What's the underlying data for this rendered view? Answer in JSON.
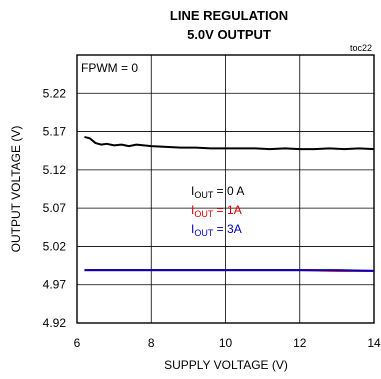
{
  "chart_data": {
    "type": "line",
    "title": "LINE REGULATION",
    "subtitle": "5.0V OUTPUT",
    "xlabel": "SUPPLY VOLTAGE (V)",
    "ylabel": "OUTPUT VOLTAGE (V)",
    "xlim": [
      6,
      14
    ],
    "ylim": [
      4.92,
      5.27
    ],
    "xticks": [
      6,
      8,
      10,
      12,
      14
    ],
    "yticks": [
      "4.92",
      "4.97",
      "5.02",
      "5.07",
      "5.12",
      "5.17",
      "5.22"
    ],
    "grid": true,
    "annotation": "FPWM = 0",
    "tag": "toc22",
    "legend": [
      {
        "prefix": "I",
        "sub": "OUT",
        "suffix": " = 0 A",
        "color": "#000000"
      },
      {
        "prefix": "I",
        "sub": "OUT",
        "suffix": " = 1A",
        "color": "#e00000"
      },
      {
        "prefix": "I",
        "sub": "OUT",
        "suffix": " = 3A",
        "color": "#0000c0"
      }
    ],
    "series": [
      {
        "color": "#000000",
        "x": [
          6.2,
          6.35,
          6.5,
          6.65,
          6.8,
          7.0,
          7.2,
          7.4,
          7.6,
          7.8,
          8.0,
          8.4,
          8.8,
          9.2,
          9.6,
          10.0,
          10.4,
          10.8,
          11.2,
          11.6,
          12.0,
          12.4,
          12.8,
          13.2,
          13.6,
          14.0
        ],
        "y": [
          5.163,
          5.161,
          5.155,
          5.153,
          5.154,
          5.152,
          5.153,
          5.151,
          5.153,
          5.152,
          5.151,
          5.15,
          5.149,
          5.149,
          5.148,
          5.148,
          5.148,
          5.148,
          5.147,
          5.148,
          5.147,
          5.147,
          5.148,
          5.147,
          5.148,
          5.147
        ]
      },
      {
        "color": "#e00000",
        "x": [
          6.2,
          7,
          8,
          9,
          10,
          11,
          12,
          13,
          14
        ],
        "y": [
          4.989,
          4.989,
          4.989,
          4.989,
          4.989,
          4.989,
          4.989,
          4.988,
          4.988
        ]
      },
      {
        "color": "#0000c0",
        "x": [
          6.2,
          7,
          8,
          9,
          10,
          11,
          12,
          13,
          14
        ],
        "y": [
          4.989,
          4.989,
          4.989,
          4.989,
          4.989,
          4.989,
          4.989,
          4.989,
          4.988
        ]
      }
    ]
  }
}
